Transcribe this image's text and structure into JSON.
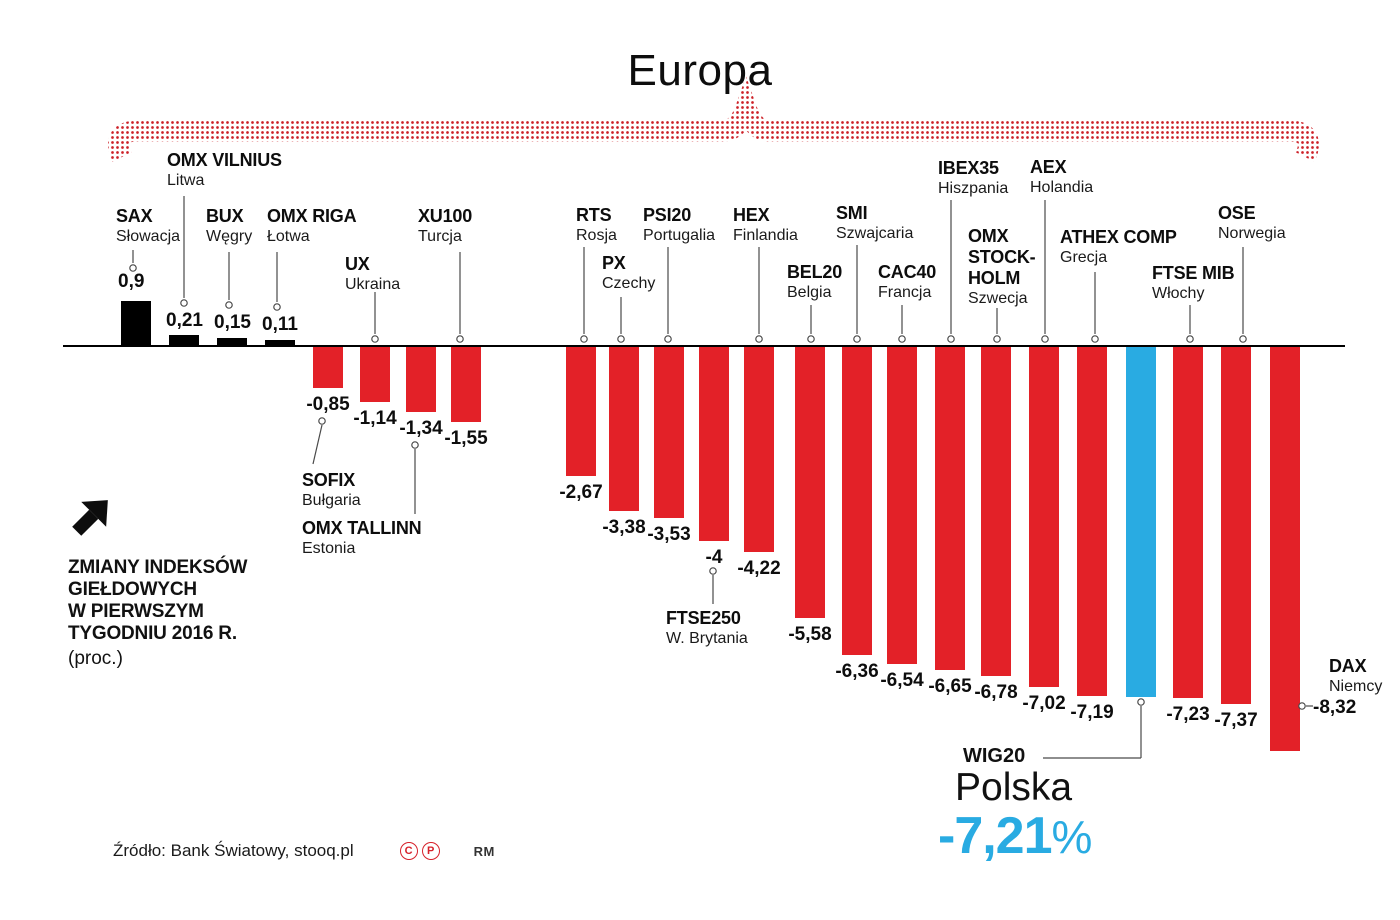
{
  "title": "Europa",
  "annotation": {
    "lines": [
      "ZMIANY INDEKSÓW",
      "GIEŁDOWYCH",
      "W PIERWSZYM",
      "TYGODNIU 2016 R."
    ],
    "unit": "(proc.)"
  },
  "highlight": {
    "index_label": "WIG20",
    "country": "Polska",
    "value_label": "-7,21",
    "unit": "%"
  },
  "source": {
    "text": "Źródło: Bank Światowy, stooq.pl",
    "copyright_c": "C",
    "copyright_p": "P",
    "credit": "RM"
  },
  "colors": {
    "positive_bar": "#000000",
    "negative_bar": "#e32128",
    "highlight_bar": "#29abe2",
    "highlight_text": "#29abe2",
    "brace_dots": "#cd2027",
    "copyright_red": "#d6212a"
  },
  "chart_data": {
    "type": "bar",
    "title": "Europa",
    "unit": "percent",
    "value_range": [
      -8.32,
      0.9
    ],
    "points": [
      {
        "id": "sax",
        "name": "SAX",
        "country": "Słowacja",
        "value": 0.9,
        "label": "0,9"
      },
      {
        "id": "omx-vilnius",
        "name": "OMX VILNIUS",
        "country": "Litwa",
        "value": 0.21,
        "label": "0,21"
      },
      {
        "id": "bux",
        "name": "BUX",
        "country": "Węgry",
        "value": 0.15,
        "label": "0,15"
      },
      {
        "id": "omx-riga",
        "name": "OMX RIGA",
        "country": "Łotwa",
        "value": 0.11,
        "label": "0,11"
      },
      {
        "id": "sofix",
        "name": "SOFIX",
        "country": "Bułgaria",
        "value": -0.85,
        "label": "-0,85"
      },
      {
        "id": "ux",
        "name": "UX",
        "country": "Ukraina",
        "value": -1.14,
        "label": "-1,14"
      },
      {
        "id": "omx-tallinn",
        "name": "OMX TALLINN",
        "country": "Estonia",
        "value": -1.34,
        "label": "-1,34"
      },
      {
        "id": "xu100",
        "name": "XU100",
        "country": "Turcja",
        "value": -1.55,
        "label": "-1,55"
      },
      {
        "id": "rts",
        "name": "RTS",
        "country": "Rosja",
        "value": -2.67,
        "label": "-2,67"
      },
      {
        "id": "px",
        "name": "PX",
        "country": "Czechy",
        "value": -3.38,
        "label": "-3,38"
      },
      {
        "id": "psi20",
        "name": "PSI20",
        "country": "Portugalia",
        "value": -3.53,
        "label": "-3,53"
      },
      {
        "id": "ftse250",
        "name": "FTSE250",
        "country": "W. Brytania",
        "value": -4,
        "label": "-4"
      },
      {
        "id": "hex",
        "name": "HEX",
        "country": "Finlandia",
        "value": -4.22,
        "label": "-4,22"
      },
      {
        "id": "bel20",
        "name": "BEL20",
        "country": "Belgia",
        "value": -5.58,
        "label": "-5,58"
      },
      {
        "id": "smi",
        "name": "SMI",
        "country": "Szwajcaria",
        "value": -6.36,
        "label": "-6,36"
      },
      {
        "id": "cac40",
        "name": "CAC40",
        "country": "Francja",
        "value": -6.54,
        "label": "-6,54"
      },
      {
        "id": "ibex35",
        "name": "IBEX35",
        "country": "Hiszpania",
        "value": -6.65,
        "label": "-6,65"
      },
      {
        "id": "omx-stockholm",
        "name": "OMX STOCKHOLM",
        "display_lines": [
          "OMX",
          "STOCK-",
          "HOLM"
        ],
        "country": "Szwecja",
        "value": -6.78,
        "label": "-6,78"
      },
      {
        "id": "aex",
        "name": "AEX",
        "country": "Holandia",
        "value": -7.02,
        "label": "-7,02"
      },
      {
        "id": "athex",
        "name": "ATHEX COMP",
        "country": "Grecja",
        "value": -7.19,
        "label": "-7,19"
      },
      {
        "id": "wig20",
        "name": "WIG20",
        "country": "Polska",
        "value": -7.21,
        "label": "-7,21",
        "highlight": true
      },
      {
        "id": "ftse-mib",
        "name": "FTSE MIB",
        "country": "Włochy",
        "value": -7.23,
        "label": "-7,23"
      },
      {
        "id": "ose",
        "name": "OSE",
        "country": "Norwegia",
        "value": -7.37,
        "label": "-7,37"
      },
      {
        "id": "dax",
        "name": "DAX",
        "country": "Niemcy",
        "value": -8.32,
        "label": "-8,32"
      }
    ]
  }
}
